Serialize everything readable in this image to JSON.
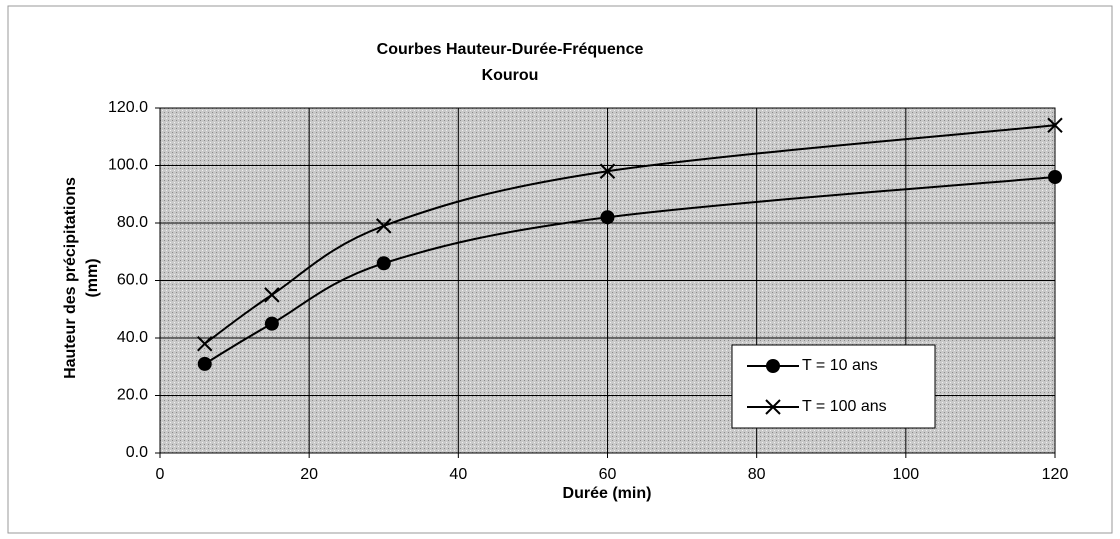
{
  "chart_data": {
    "type": "line",
    "title": "Courbes Hauteur-Durée-Fréquence",
    "subtitle": "Kourou",
    "xlabel": "Durée  (min)",
    "ylabel": [
      "Hauteur des précipitations",
      "(mm)"
    ],
    "x": [
      6,
      15,
      30,
      60,
      120
    ],
    "series": [
      {
        "name": "T = 10 ans",
        "color": "#000000",
        "marker": "circle",
        "values": [
          31,
          45,
          66,
          82,
          96
        ]
      },
      {
        "name": "T = 100 ans",
        "color": "#000000",
        "marker": "x",
        "values": [
          38,
          55,
          79,
          98,
          114
        ]
      }
    ],
    "xlim": [
      0,
      120
    ],
    "xticks": [
      0,
      20,
      40,
      60,
      80,
      100,
      120
    ],
    "ylim": [
      0,
      120
    ],
    "yticks": [
      {
        "value": 0,
        "label": "0.0"
      },
      {
        "value": 20,
        "label": "20.0"
      },
      {
        "value": 40,
        "label": "40.0"
      },
      {
        "value": 60,
        "label": "60.0"
      },
      {
        "value": 80,
        "label": "80.0"
      },
      {
        "value": 100,
        "label": "100.0"
      },
      {
        "value": 120,
        "label": "120.0"
      }
    ],
    "grid": true,
    "legend": "lower right",
    "smooth": true
  }
}
